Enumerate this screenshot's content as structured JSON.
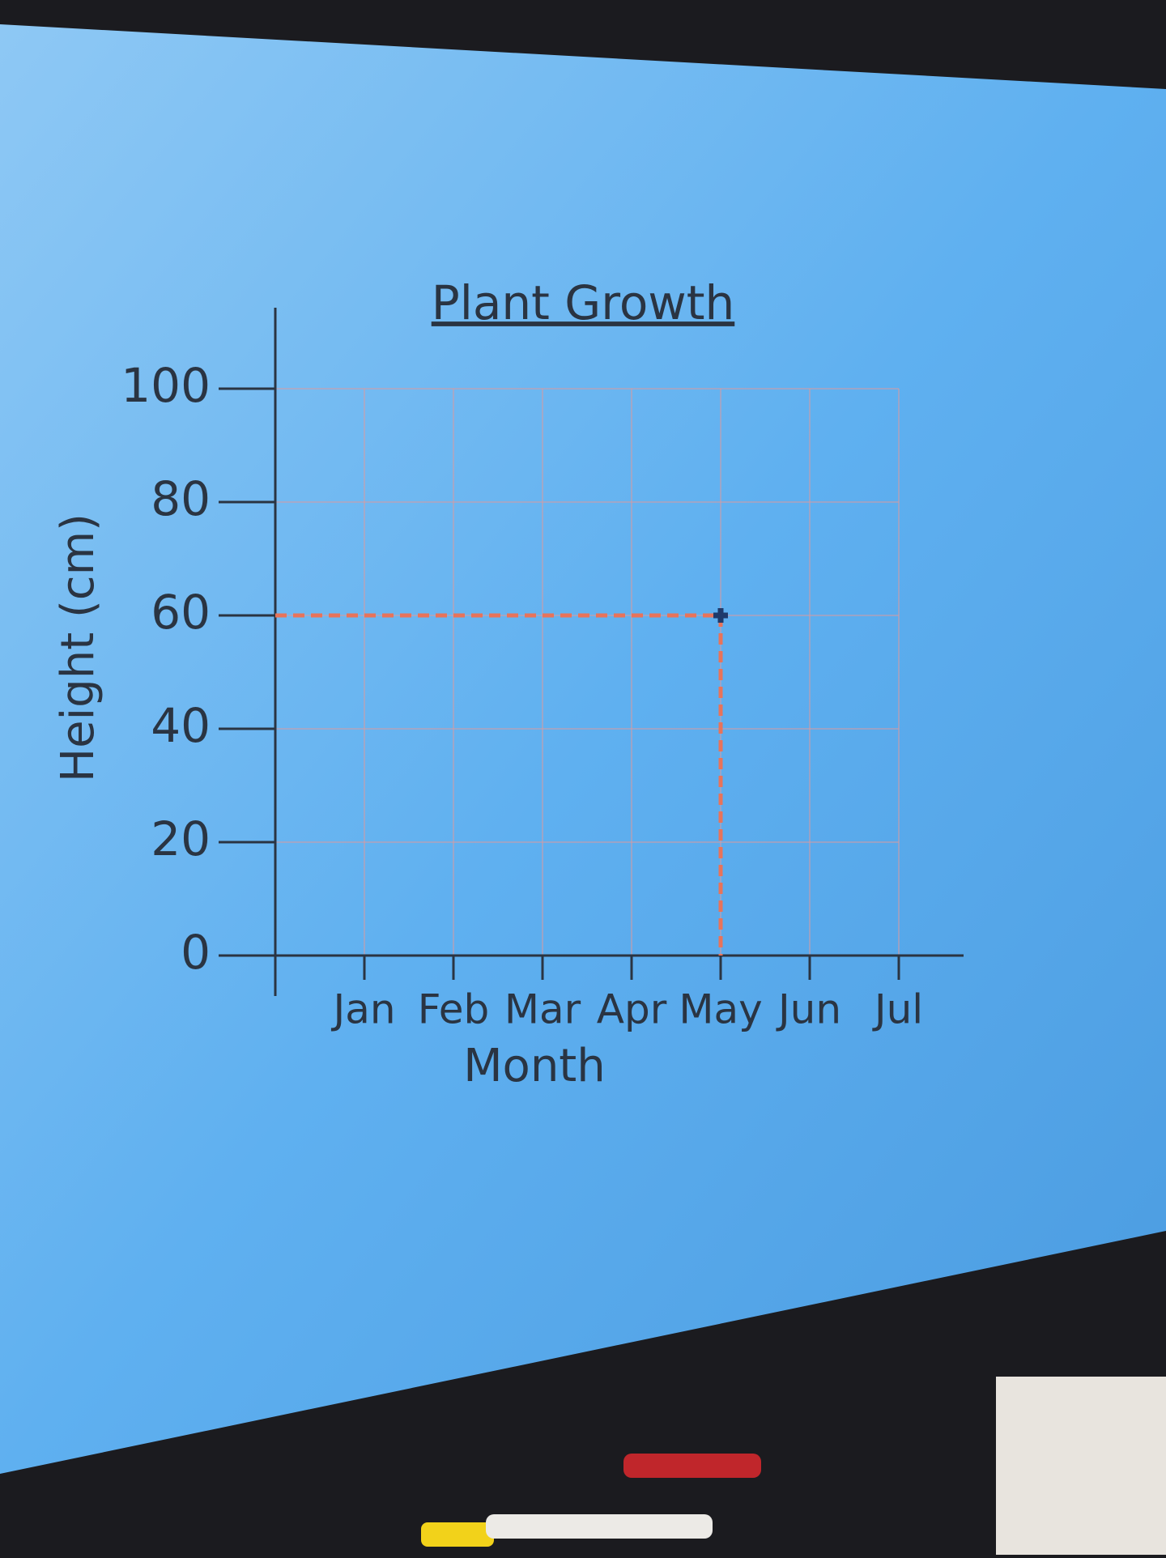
{
  "chart_data": {
    "type": "scatter",
    "title": "Plant Growth",
    "x_label": "Month",
    "y_label": "Height (cm)",
    "categories": [
      "Jan",
      "Feb",
      "Mar",
      "Apr",
      "May",
      "Jun",
      "Jul"
    ],
    "series": [
      {
        "color": "#1f3a6b",
        "values": [
          null,
          null,
          null,
          null,
          60,
          null,
          null
        ]
      }
    ],
    "guide_color": "#e8735a",
    "guides": true,
    "ylim": [
      0,
      100
    ],
    "yticks": [
      0,
      20,
      40,
      60,
      80,
      100
    ],
    "grid": true
  }
}
